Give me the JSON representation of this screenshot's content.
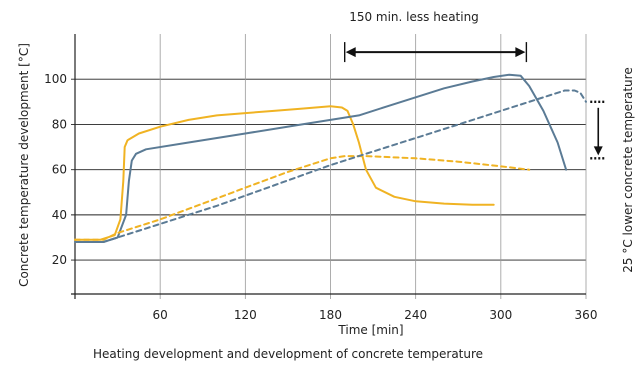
{
  "chart_data": {
    "type": "line",
    "caption": "Heating development and development of concrete temperature",
    "xlabel": "Time [min]",
    "ylabel": "Concrete temperature development [°C]",
    "right_label": "25 °C lower concrete temperature",
    "top_annotation": "150 min. less heating",
    "x_ticks": [
      60,
      120,
      180,
      240,
      300,
      360
    ],
    "y_ticks": [
      20,
      40,
      60,
      80,
      100
    ],
    "xlim": [
      0,
      360
    ],
    "ylim": [
      5,
      120
    ],
    "grid": "horizontal-and-vertical",
    "colors": {
      "orange": "#f0b323",
      "blue": "#5b7b95",
      "grid": "#999999",
      "axis": "#222222"
    },
    "series": [
      {
        "color": "orange",
        "dash": "solid",
        "points": [
          [
            0,
            29
          ],
          [
            18,
            29
          ],
          [
            28,
            31
          ],
          [
            32,
            38
          ],
          [
            34,
            55
          ],
          [
            35,
            70
          ],
          [
            37,
            73
          ],
          [
            45,
            76
          ],
          [
            60,
            79
          ],
          [
            80,
            82
          ],
          [
            100,
            84
          ],
          [
            120,
            85
          ],
          [
            140,
            86
          ],
          [
            160,
            87
          ],
          [
            180,
            88
          ],
          [
            188,
            87.5
          ],
          [
            192,
            86
          ],
          [
            196,
            80
          ],
          [
            200,
            72
          ],
          [
            205,
            60
          ],
          [
            212,
            52
          ],
          [
            225,
            48
          ],
          [
            240,
            46
          ],
          [
            260,
            45
          ],
          [
            280,
            44.5
          ],
          [
            295,
            44.5
          ]
        ]
      },
      {
        "color": "blue",
        "dash": "solid",
        "points": [
          [
            0,
            28
          ],
          [
            20,
            28
          ],
          [
            30,
            30
          ],
          [
            36,
            40
          ],
          [
            38,
            55
          ],
          [
            40,
            64
          ],
          [
            43,
            67
          ],
          [
            50,
            69
          ],
          [
            80,
            72
          ],
          [
            120,
            76
          ],
          [
            160,
            80
          ],
          [
            180,
            82
          ],
          [
            200,
            84
          ],
          [
            220,
            88
          ],
          [
            240,
            92
          ],
          [
            260,
            96
          ],
          [
            280,
            99
          ],
          [
            295,
            101
          ],
          [
            306,
            102
          ],
          [
            314,
            101.5
          ],
          [
            320,
            97
          ],
          [
            330,
            86
          ],
          [
            340,
            72
          ],
          [
            346,
            60
          ]
        ]
      },
      {
        "color": "orange",
        "dash": "dashed",
        "points": [
          [
            0,
            29
          ],
          [
            20,
            29
          ],
          [
            30,
            32
          ],
          [
            60,
            38
          ],
          [
            90,
            45
          ],
          [
            120,
            52
          ],
          [
            150,
            59
          ],
          [
            180,
            65
          ],
          [
            190,
            66
          ],
          [
            205,
            66
          ],
          [
            240,
            65
          ],
          [
            270,
            63.5
          ],
          [
            300,
            61.5
          ],
          [
            320,
            60
          ]
        ]
      },
      {
        "color": "blue",
        "dash": "dashed",
        "points": [
          [
            0,
            28
          ],
          [
            20,
            28
          ],
          [
            30,
            30
          ],
          [
            60,
            36
          ],
          [
            100,
            44
          ],
          [
            140,
            53
          ],
          [
            180,
            62
          ],
          [
            220,
            70
          ],
          [
            260,
            78
          ],
          [
            300,
            86
          ],
          [
            330,
            92
          ],
          [
            345,
            95
          ],
          [
            352,
            95
          ],
          [
            356,
            94
          ],
          [
            360,
            90
          ]
        ]
      }
    ],
    "annotations": [
      {
        "type": "h-double-arrow",
        "x1": 190,
        "x2": 318,
        "y": 112
      },
      {
        "type": "v-arrow-down",
        "x": 363,
        "y1": 90,
        "y2": 65
      }
    ]
  }
}
